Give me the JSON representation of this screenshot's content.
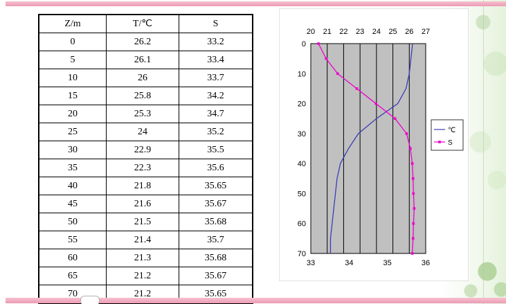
{
  "page": {
    "background_color": "#ffffff",
    "accent_pink": "#ee9fb6",
    "accent_green": "#a8cd92"
  },
  "table": {
    "headers": [
      "Z/m",
      "T/℃",
      "S"
    ],
    "rows": [
      [
        "0",
        "26.2",
        "33.2"
      ],
      [
        "5",
        "26.1",
        "33.4"
      ],
      [
        "10",
        "26",
        "33.7"
      ],
      [
        "15",
        "25.8",
        "34.2"
      ],
      [
        "20",
        "25.3",
        "34.7"
      ],
      [
        "25",
        "24",
        "35.2"
      ],
      [
        "30",
        "22.9",
        "35.5"
      ],
      [
        "35",
        "22.3",
        "35.6"
      ],
      [
        "40",
        "21.8",
        "35.65"
      ],
      [
        "45",
        "21.6",
        "35.67"
      ],
      [
        "50",
        "21.5",
        "35.68"
      ],
      [
        "55",
        "21.4",
        "35.7"
      ],
      [
        "60",
        "21.3",
        "35.68"
      ],
      [
        "65",
        "21.2",
        "35.67"
      ],
      [
        "70",
        "21.2",
        "35.65"
      ]
    ]
  },
  "chart_data": {
    "type": "line",
    "plot_background": "#c0c0c0",
    "gridline_color": "#000000",
    "depth_axis": {
      "ticks": [
        0,
        10,
        20,
        30,
        40,
        50,
        60,
        70
      ],
      "range": [
        0,
        70
      ]
    },
    "top_axis": {
      "ticks": [
        20,
        21,
        22,
        23,
        24,
        25,
        26,
        27
      ],
      "range": [
        20,
        27
      ]
    },
    "bottom_axis": {
      "ticks": [
        33,
        34,
        35,
        36
      ],
      "range": [
        33,
        36
      ]
    },
    "x_depths": [
      0,
      5,
      10,
      15,
      20,
      25,
      30,
      35,
      40,
      45,
      50,
      55,
      60,
      65,
      70
    ],
    "series": [
      {
        "name": "℃",
        "axis": "top",
        "color": "#3c3cb4",
        "marker": false,
        "values": [
          26.2,
          26.1,
          26,
          25.8,
          25.3,
          24,
          22.9,
          22.3,
          21.8,
          21.6,
          21.5,
          21.4,
          21.3,
          21.2,
          21.2
        ]
      },
      {
        "name": "S",
        "axis": "bottom",
        "color": "#ee00cc",
        "marker": true,
        "values": [
          33.2,
          33.4,
          33.7,
          34.2,
          34.7,
          35.2,
          35.5,
          35.6,
          35.65,
          35.67,
          35.68,
          35.7,
          35.68,
          35.67,
          35.65
        ]
      }
    ],
    "legend": {
      "position": "right",
      "entries": [
        "℃",
        "S"
      ]
    }
  }
}
